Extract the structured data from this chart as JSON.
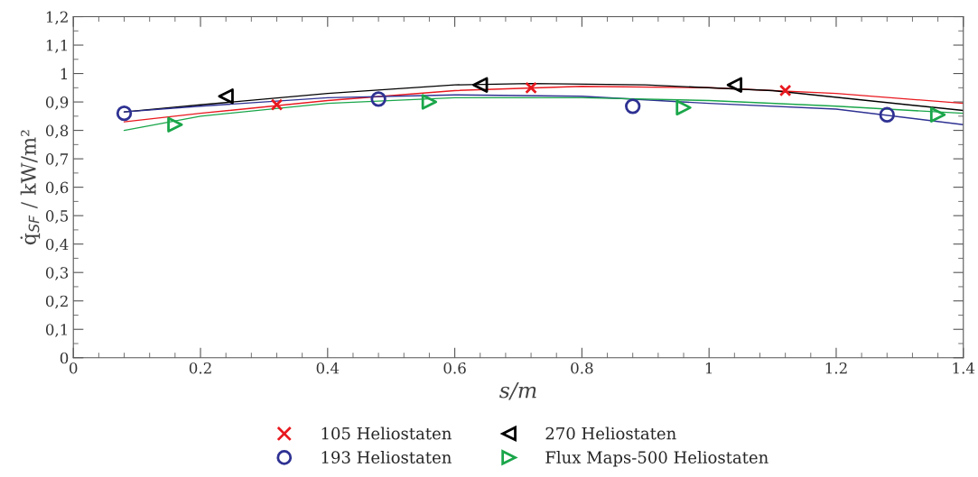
{
  "chart_data": {
    "type": "scatter",
    "xlabel": "s/m",
    "ylabel": "q̇$_{SF}$ / kW/m²",
    "xlim": [
      0,
      1.4
    ],
    "ylim": [
      0,
      1.2
    ],
    "xticks": [
      0,
      0.2,
      0.4,
      0.6,
      0.8,
      1,
      1.2,
      1.4
    ],
    "yticks": [
      0,
      {
        "value": 0.1,
        "label": "0,1"
      },
      {
        "value": 0.2,
        "label": "0,2"
      },
      {
        "value": 0.3,
        "label": "0,3"
      },
      {
        "value": 0.4,
        "label": "0,4"
      },
      {
        "value": 0.5,
        "label": "0,5"
      },
      {
        "value": 0.6,
        "label": "0,6"
      },
      {
        "value": 0.7,
        "label": "0,7"
      },
      {
        "value": 0.8,
        "label": "0,8"
      },
      {
        "value": 0.9,
        "label": "0,9"
      },
      1,
      {
        "value": 1.1,
        "label": "1,1"
      },
      {
        "value": 1.2,
        "label": "1,2"
      }
    ],
    "grid": false,
    "legend": "bottom",
    "series": [
      {
        "name": "105 Heliostaten",
        "color": "#e8191f",
        "marker": "cross",
        "x": [
          0.32,
          0.72,
          1.12
        ],
        "values": [
          0.89,
          0.95,
          0.94
        ]
      },
      {
        "name": "193 Heliostaten",
        "color": "#2e3192",
        "marker": "circle",
        "x": [
          0.08,
          0.48,
          0.88,
          1.28
        ],
        "values": [
          0.86,
          0.91,
          0.885,
          0.855
        ]
      },
      {
        "name": "270 Heliostaten",
        "color": "#000000",
        "marker": "triangle-left",
        "x": [
          0.24,
          0.64,
          1.04
        ],
        "values": [
          0.92,
          0.96,
          0.96
        ]
      },
      {
        "name": "Flux Maps-500 Heliostaten",
        "color": "#1aa64a",
        "marker": "triangle-right",
        "x": [
          0.16,
          0.56,
          0.96,
          1.36
        ],
        "values": [
          0.82,
          0.9,
          0.88,
          0.855
        ]
      },
      {
        "type": "line",
        "color": "#e8191f",
        "x": [
          0.08,
          0.2,
          0.4,
          0.6,
          0.8,
          1.0,
          1.2,
          1.4
        ],
        "values": [
          0.83,
          0.86,
          0.905,
          0.94,
          0.955,
          0.95,
          0.93,
          0.895
        ]
      },
      {
        "type": "line",
        "color": "#000000",
        "x": [
          0.08,
          0.2,
          0.4,
          0.6,
          0.72,
          0.9,
          1.1,
          1.4
        ],
        "values": [
          0.865,
          0.89,
          0.93,
          0.96,
          0.965,
          0.96,
          0.94,
          0.87
        ]
      },
      {
        "type": "line",
        "color": "#2e3192",
        "x": [
          0.08,
          0.2,
          0.4,
          0.6,
          0.8,
          1.0,
          1.2,
          1.4
        ],
        "values": [
          0.865,
          0.885,
          0.915,
          0.925,
          0.92,
          0.895,
          0.875,
          0.82
        ]
      },
      {
        "type": "line",
        "color": "#1aa64a",
        "x": [
          0.08,
          0.2,
          0.4,
          0.6,
          0.8,
          1.0,
          1.2,
          1.4
        ],
        "values": [
          0.8,
          0.85,
          0.895,
          0.915,
          0.915,
          0.905,
          0.885,
          0.86
        ]
      }
    ]
  }
}
